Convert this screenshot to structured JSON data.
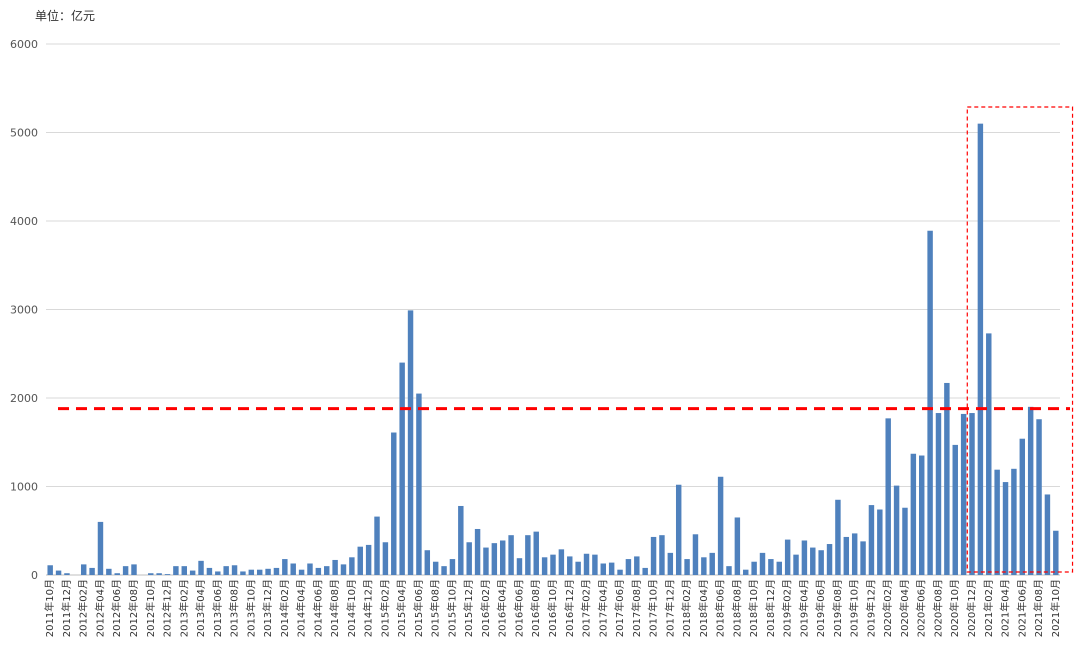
{
  "unit_label": "单位：亿元",
  "chart_data": {
    "type": "bar",
    "title": "",
    "ylim": [
      0,
      6000
    ],
    "yticks": [
      0,
      1000,
      2000,
      3000,
      4000,
      5000,
      6000
    ],
    "grid": true,
    "bar_color": "#4f81bd",
    "annotation_color": "#ff0000",
    "reference_line": 1880,
    "highlight_range": [
      "2020年12月",
      "2021年10月"
    ],
    "tick_labels": [
      "2011年10月",
      "2011年12月",
      "2012年02月",
      "2012年04月",
      "2012年06月",
      "2012年08月",
      "2012年10月",
      "2012年12月",
      "2013年02月",
      "2013年04月",
      "2013年06月",
      "2013年08月",
      "2013年10月",
      "2013年12月",
      "2014年02月",
      "2014年04月",
      "2014年06月",
      "2014年08月",
      "2014年10月",
      "2014年12月",
      "2015年02月",
      "2015年04月",
      "2015年06月",
      "2015年08月",
      "2015年10月",
      "2015年12月",
      "2016年02月",
      "2016年04月",
      "2016年06月",
      "2016年08月",
      "2016年10月",
      "2016年12月",
      "2017年02月",
      "2017年04月",
      "2017年06月",
      "2017年08月",
      "2017年10月",
      "2017年12月",
      "2018年02月",
      "2018年04月",
      "2018年06月",
      "2018年08月",
      "2018年10月",
      "2018年12月",
      "2019年02月",
      "2019年04月",
      "2019年06月",
      "2019年08月",
      "2019年10月",
      "2019年12月",
      "2020年02月",
      "2020年04月",
      "2020年06月",
      "2020年08月",
      "2020年10月",
      "2020年12月",
      "2021年02月",
      "2021年04月",
      "2021年06月",
      "2021年08月",
      "2021年10月"
    ],
    "values": [
      110,
      50,
      20,
      0,
      120,
      80,
      600,
      70,
      20,
      100,
      120,
      0,
      20,
      20,
      10,
      100,
      100,
      50,
      160,
      80,
      40,
      100,
      110,
      40,
      60,
      60,
      70,
      80,
      180,
      130,
      60,
      130,
      80,
      100,
      170,
      120,
      200,
      320,
      340,
      660,
      370,
      1610,
      2400,
      2990,
      2050,
      280,
      150,
      100,
      180,
      780,
      370,
      520,
      310,
      360,
      390,
      450,
      190,
      450,
      490,
      200,
      230,
      290,
      210,
      150,
      240,
      230,
      130,
      140,
      60,
      180,
      210,
      80,
      430,
      450,
      250,
      1020,
      180,
      460,
      200,
      250,
      1110,
      100,
      650,
      60,
      150,
      250,
      180,
      150,
      400,
      230,
      390,
      310,
      280,
      350,
      850,
      430,
      470,
      380,
      790,
      740,
      1770,
      1010,
      760,
      1370,
      1350,
      3890,
      1830,
      2170,
      1470,
      1820,
      1830,
      5100,
      2730,
      1190,
      1050,
      1200,
      1540,
      1900,
      1760,
      910,
      500
    ]
  }
}
